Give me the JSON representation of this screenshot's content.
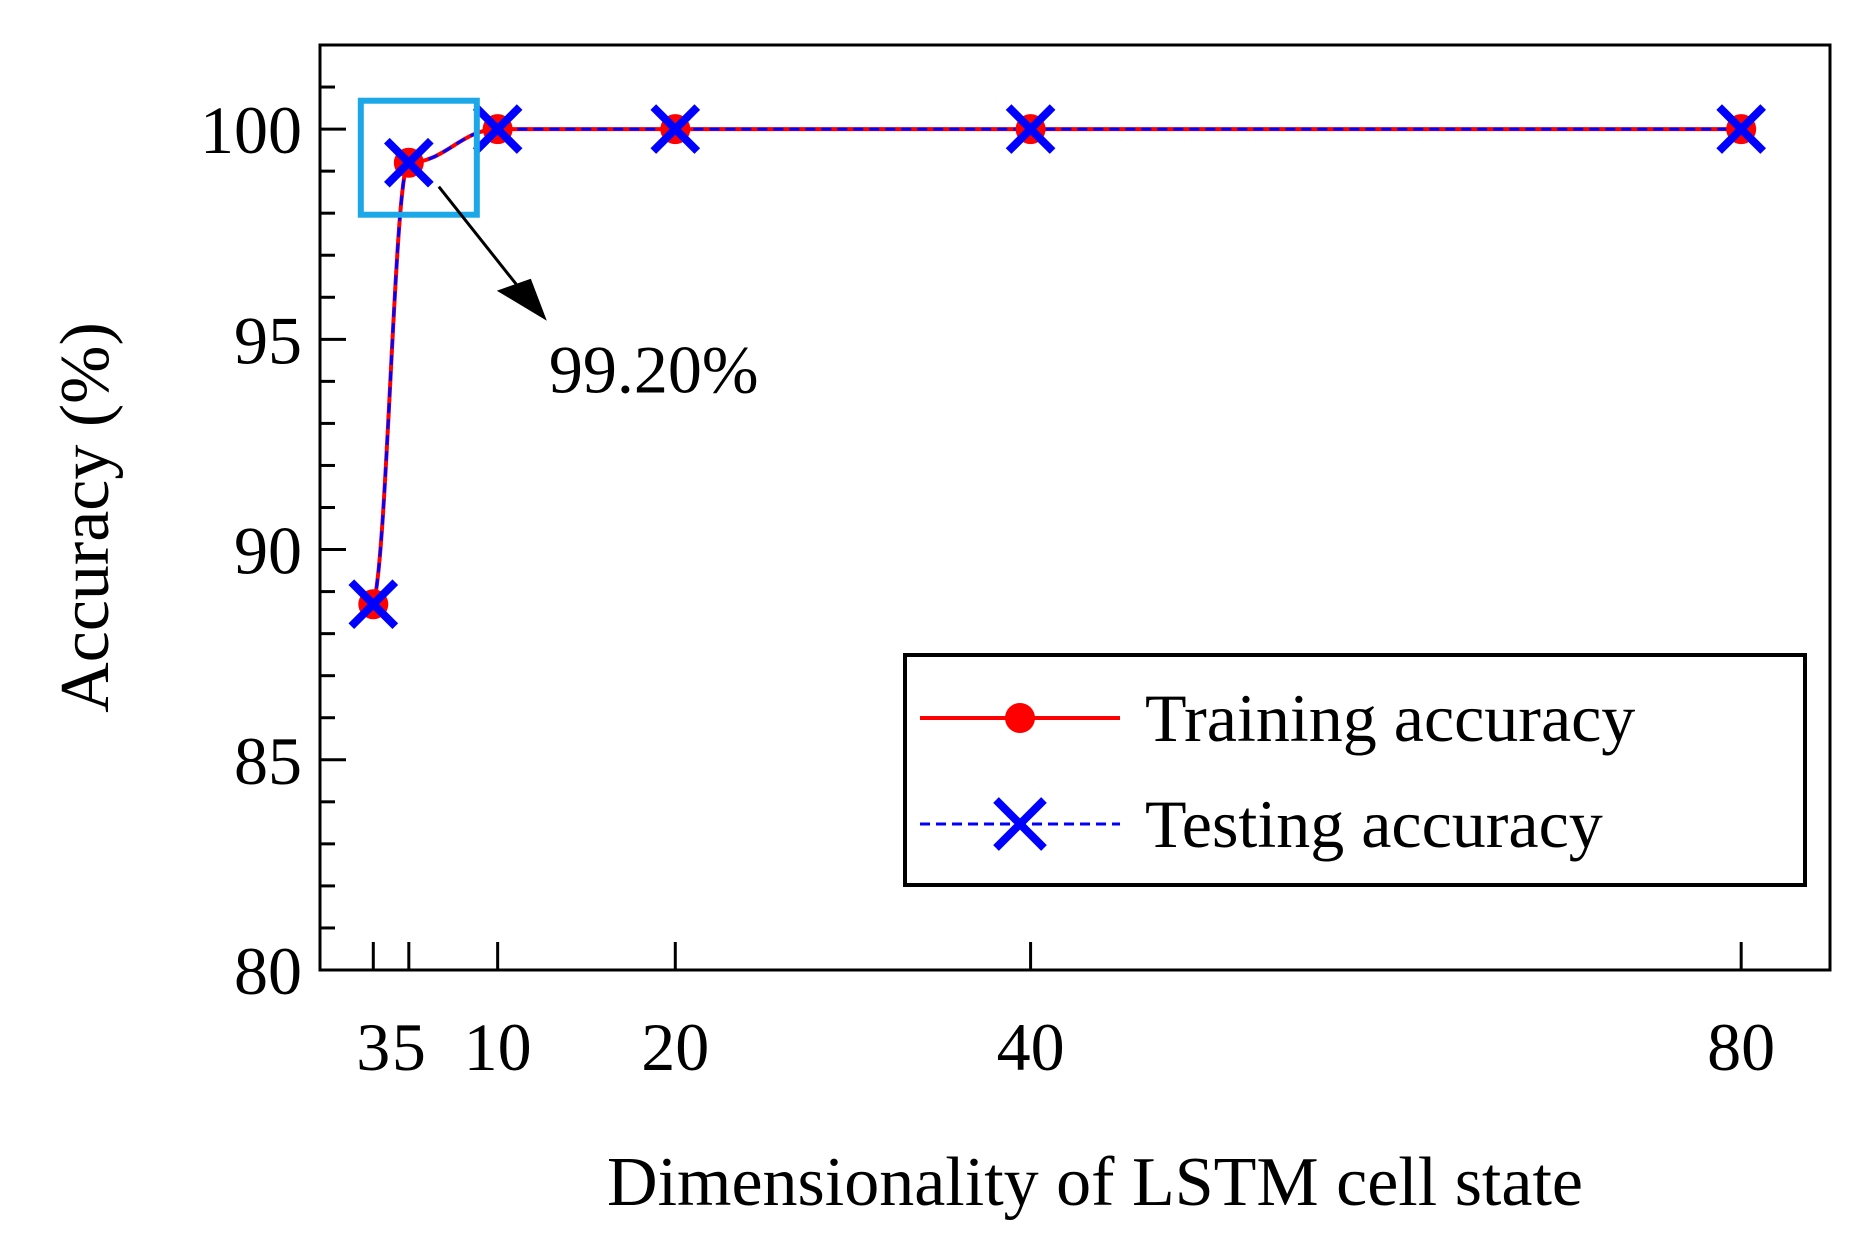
{
  "chart_data": {
    "type": "line",
    "title": "",
    "xlabel": "Dimensionality of  LSTM cell state",
    "ylabel": "Accuracy (%)",
    "x": [
      3,
      5,
      10,
      20,
      40,
      80
    ],
    "x_tick_labels": [
      "3",
      "5",
      "10",
      "20",
      "40",
      "80"
    ],
    "xlim": [
      0,
      85
    ],
    "ylim": [
      80,
      102
    ],
    "y_ticks": [
      80,
      85,
      90,
      95,
      100
    ],
    "y_tick_labels": [
      "80",
      "85",
      "90",
      "95",
      "100"
    ],
    "series": [
      {
        "name": "Training accuracy",
        "values": [
          88.7,
          99.2,
          100,
          100,
          100,
          100
        ],
        "color": "#ff0000",
        "marker": "circle",
        "line": "solid"
      },
      {
        "name": "Testing accuracy",
        "values": [
          88.7,
          99.2,
          100,
          100,
          100,
          100
        ],
        "color": "#0000ff",
        "marker": "x",
        "line": "dashed"
      }
    ],
    "annotation": {
      "text": "99.20%",
      "x": 5,
      "y": 99.2,
      "box_color": "#1ca8e8"
    },
    "legend_position": "lower-right",
    "grid": false
  }
}
